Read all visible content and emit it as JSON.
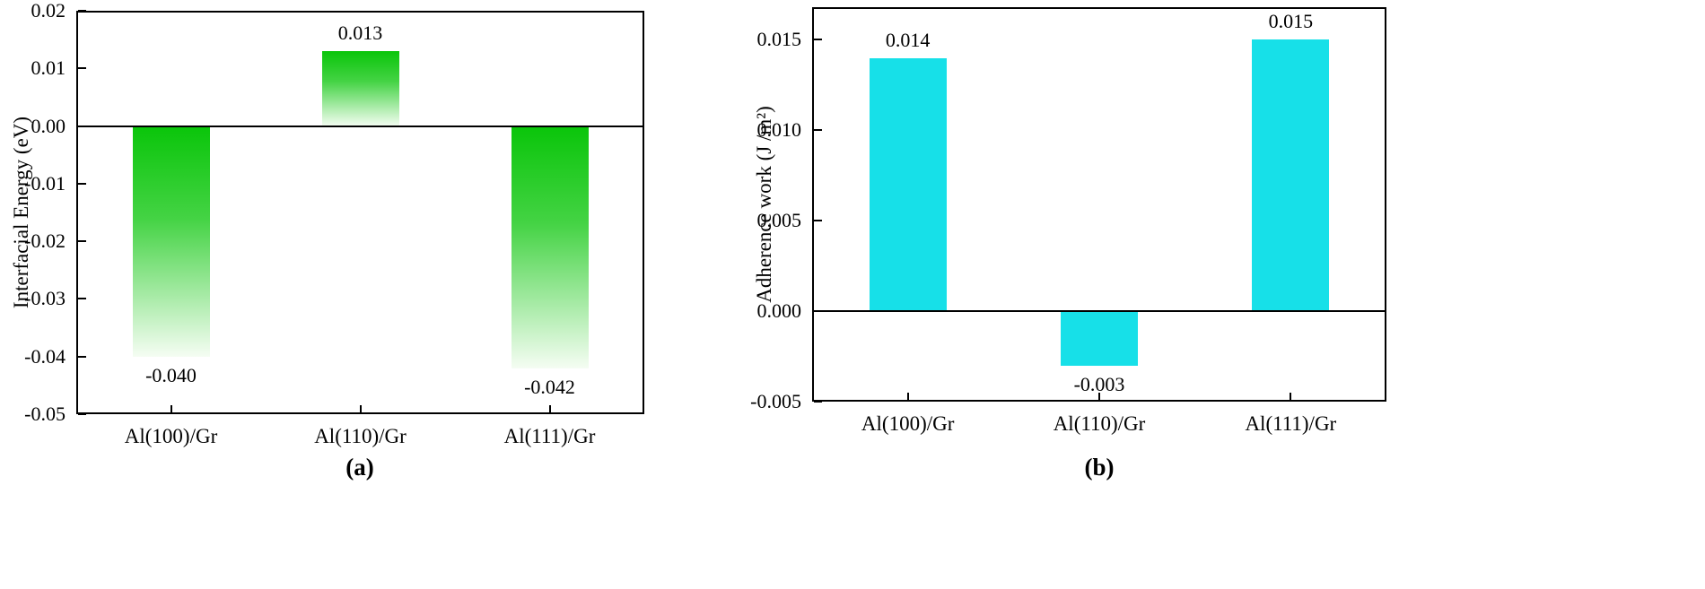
{
  "chart_data": [
    {
      "type": "bar",
      "panel": "a",
      "panel_tag": "(a)",
      "title": "",
      "xlabel": "",
      "ylabel": "Interfacial Energy (eV)",
      "categories": [
        "Al(100)/Gr",
        "Al(110)/Gr",
        "Al(111)/Gr"
      ],
      "values": [
        -0.04,
        0.013,
        -0.042
      ],
      "value_labels": [
        "-0.040",
        "0.013",
        "-0.042"
      ],
      "ylim": [
        -0.05,
        0.02
      ],
      "yticks": [
        0.02,
        0.01,
        0,
        -0.01,
        -0.02,
        -0.03,
        -0.04,
        -0.05
      ],
      "ytick_labels": [
        "0.02",
        "0.01",
        "0.00",
        "-0.01",
        "-0.02",
        "-0.03",
        "-0.04",
        "-0.05"
      ],
      "grid": false,
      "legend": null,
      "bar_fill": {
        "type": "gradient",
        "from": "#0ac50a",
        "mid": "#44d344",
        "to": "#f5fdf3"
      }
    },
    {
      "type": "bar",
      "panel": "b",
      "panel_tag": "(b)",
      "title": "",
      "xlabel": "",
      "ylabel": "Adherence work (J /m²)",
      "categories": [
        "Al(100)/Gr",
        "Al(110)/Gr",
        "Al(111)/Gr"
      ],
      "values": [
        0.014,
        -0.003,
        0.015
      ],
      "value_labels": [
        "0.014",
        "-0.003",
        "0.015"
      ],
      "ylim": [
        -0.005,
        0.0168
      ],
      "yticks": [
        0.015,
        0.01,
        0.005,
        0,
        -0.005
      ],
      "ytick_labels": [
        "0.015",
        "0.010",
        "0.005",
        "0.000",
        "-0.005"
      ],
      "grid": false,
      "legend": null,
      "bar_fill": {
        "type": "solid",
        "color": "#17e0e8"
      }
    }
  ]
}
